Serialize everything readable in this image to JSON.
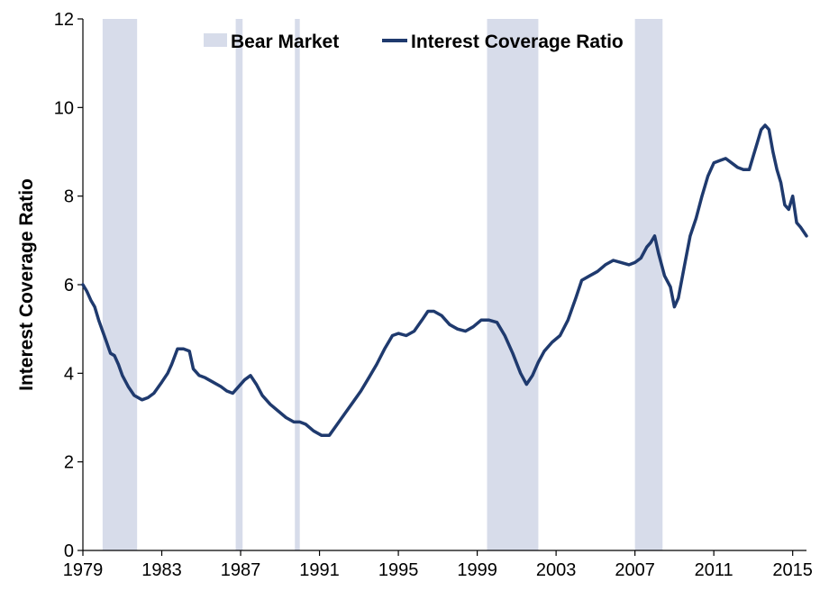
{
  "chart_data": {
    "type": "line",
    "title": "",
    "xlabel": "",
    "ylabel": "Interest Coverage Ratio",
    "xlim": [
      1979,
      2015.7
    ],
    "ylim": [
      0,
      12
    ],
    "x_ticks": [
      1979,
      1983,
      1987,
      1991,
      1995,
      1999,
      2003,
      2007,
      2011,
      2015
    ],
    "x_tick_labels": [
      "1979",
      "1983",
      "1987",
      "1991",
      "1995",
      "1999",
      "2003",
      "2007",
      "2011",
      "2015"
    ],
    "y_ticks": [
      0,
      2,
      4,
      6,
      8,
      10,
      12
    ],
    "y_tick_labels": [
      "0",
      "2",
      "4",
      "6",
      "8",
      "10",
      "12"
    ],
    "grid": false,
    "legend_position": "top-center",
    "legend": [
      {
        "label": "Bear Market",
        "kind": "band"
      },
      {
        "label": "Interest Coverage Ratio",
        "kind": "line"
      }
    ],
    "colors": {
      "band": "#d7dcea",
      "line": "#1f3a6e",
      "axis": "#000000"
    },
    "bear_markets": [
      [
        1980.0,
        1981.75
      ],
      [
        1986.75,
        1987.1
      ],
      [
        1989.75,
        1990.0
      ],
      [
        1999.5,
        2002.1
      ],
      [
        2007.0,
        2008.4
      ]
    ],
    "series": [
      {
        "name": "Interest Coverage Ratio",
        "x": [
          1979.0,
          1979.2,
          1979.4,
          1979.6,
          1979.8,
          1980.0,
          1980.2,
          1980.4,
          1980.6,
          1980.8,
          1981.0,
          1981.3,
          1981.6,
          1982.0,
          1982.3,
          1982.6,
          1983.0,
          1983.3,
          1983.5,
          1983.8,
          1984.1,
          1984.4,
          1984.6,
          1984.9,
          1985.2,
          1985.6,
          1986.0,
          1986.3,
          1986.6,
          1986.9,
          1987.2,
          1987.5,
          1987.8,
          1988.1,
          1988.5,
          1988.9,
          1989.3,
          1989.7,
          1990.0,
          1990.3,
          1990.7,
          1991.1,
          1991.5,
          1991.9,
          1992.3,
          1992.7,
          1993.1,
          1993.5,
          1993.9,
          1994.3,
          1994.7,
          1995.0,
          1995.4,
          1995.8,
          1996.2,
          1996.5,
          1996.8,
          1997.2,
          1997.6,
          1998.0,
          1998.4,
          1998.8,
          1999.2,
          1999.6,
          2000.0,
          2000.4,
          2000.8,
          2001.2,
          2001.5,
          2001.8,
          2002.1,
          2002.4,
          2002.8,
          2003.2,
          2003.6,
          2004.0,
          2004.3,
          2004.7,
          2005.1,
          2005.5,
          2005.9,
          2006.3,
          2006.7,
          2007.0,
          2007.3,
          2007.6,
          2007.8,
          2008.0,
          2008.2,
          2008.5,
          2008.8,
          2009.0,
          2009.2,
          2009.5,
          2009.8,
          2010.1,
          2010.4,
          2010.7,
          2011.0,
          2011.3,
          2011.6,
          2011.9,
          2012.2,
          2012.5,
          2012.8,
          2013.0,
          2013.2,
          2013.4,
          2013.6,
          2013.8,
          2014.0,
          2014.2,
          2014.4,
          2014.6,
          2014.8,
          2015.0,
          2015.2,
          2015.4,
          2015.7
        ],
        "values": [
          6.0,
          5.85,
          5.65,
          5.5,
          5.2,
          4.95,
          4.7,
          4.45,
          4.4,
          4.2,
          3.95,
          3.7,
          3.5,
          3.4,
          3.45,
          3.55,
          3.8,
          4.0,
          4.2,
          4.55,
          4.55,
          4.5,
          4.1,
          3.95,
          3.9,
          3.8,
          3.7,
          3.6,
          3.55,
          3.7,
          3.85,
          3.95,
          3.75,
          3.5,
          3.3,
          3.15,
          3.0,
          2.9,
          2.9,
          2.85,
          2.7,
          2.6,
          2.6,
          2.85,
          3.1,
          3.35,
          3.6,
          3.9,
          4.2,
          4.55,
          4.85,
          4.9,
          4.85,
          4.95,
          5.2,
          5.4,
          5.4,
          5.3,
          5.1,
          5.0,
          4.95,
          5.05,
          5.2,
          5.2,
          5.15,
          4.85,
          4.45,
          4.0,
          3.75,
          3.95,
          4.25,
          4.5,
          4.7,
          4.85,
          5.2,
          5.7,
          6.1,
          6.2,
          6.3,
          6.45,
          6.55,
          6.5,
          6.45,
          6.5,
          6.6,
          6.85,
          6.95,
          7.1,
          6.7,
          6.2,
          5.95,
          5.5,
          5.7,
          6.4,
          7.1,
          7.5,
          8.0,
          8.45,
          8.75,
          8.8,
          8.85,
          8.75,
          8.65,
          8.6,
          8.6,
          8.9,
          9.2,
          9.5,
          9.6,
          9.5,
          9.0,
          8.6,
          8.3,
          7.8,
          7.7,
          8.0,
          7.4,
          7.3,
          7.1
        ]
      }
    ]
  }
}
